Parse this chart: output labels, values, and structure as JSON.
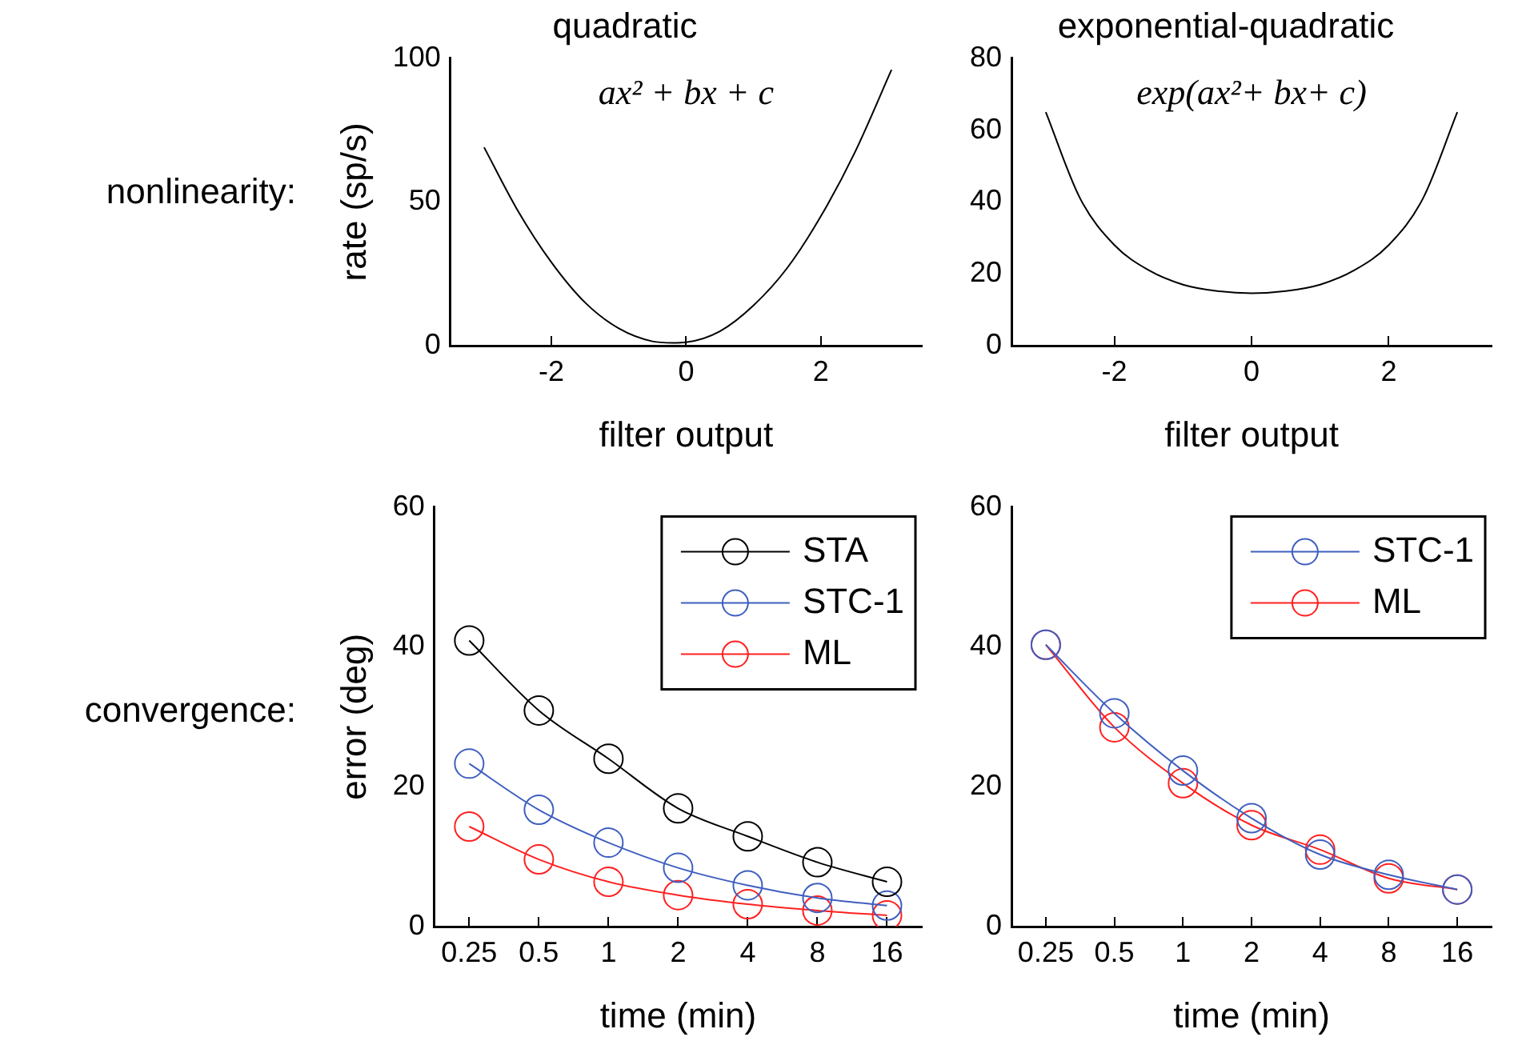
{
  "chart_data": [
    {
      "type": "line",
      "title": "quadratic",
      "subtitle": "ax² + bx + c",
      "xlabel": "filter output",
      "ylabel": "rate (sp/s)",
      "annotations": [
        "nonlinearity:"
      ],
      "xlim": [
        -3.5,
        3.5
      ],
      "xticks": [
        -2,
        0,
        2
      ],
      "ylim": [
        0,
        100
      ],
      "yticks": [
        0,
        50,
        100
      ],
      "series": [
        {
          "color": "#000000",
          "x": [
            -3.0,
            -2.5,
            -2,
            -1.5,
            -1,
            -0.5,
            -0.2,
            0,
            0.5,
            1,
            1.5,
            2,
            2.5,
            3.05
          ],
          "values": [
            69,
            47,
            29,
            15,
            6,
            1.5,
            1,
            1.2,
            5,
            14,
            27,
            45,
            67,
            96
          ]
        }
      ]
    },
    {
      "type": "line",
      "title": "exponential-quadratic",
      "subtitle": "exp(ax²+ bx+ c)",
      "xlabel": "filter output",
      "xlim": [
        -3.5,
        3.5
      ],
      "xticks": [
        -2,
        0,
        2
      ],
      "ylim": [
        0,
        80
      ],
      "yticks": [
        0,
        20,
        40,
        60,
        80
      ],
      "series": [
        {
          "color": "#000000",
          "x": [
            -3,
            -2.5,
            -2,
            -1.5,
            -1,
            -0.5,
            0,
            0.5,
            1,
            1.5,
            2,
            2.5,
            3
          ],
          "values": [
            65,
            41,
            28,
            21,
            17,
            15.2,
            14.6,
            15.2,
            17,
            21,
            28,
            41,
            65
          ]
        }
      ]
    },
    {
      "type": "line",
      "xlabel": "time (min)",
      "ylabel": "error (deg)",
      "annotations": [
        "convergence:"
      ],
      "categories": [
        "0.25",
        "0.5",
        "1",
        "2",
        "4",
        "8",
        "16"
      ],
      "ylim": [
        0,
        60
      ],
      "yticks": [
        0,
        20,
        40,
        60
      ],
      "marker": "circle",
      "legend": "top right",
      "series": [
        {
          "name": "STA",
          "color": "#000000",
          "values": [
            40.9,
            30.9,
            24,
            16.9,
            12.9,
            9.2,
            6.4
          ]
        },
        {
          "name": "STC-1",
          "color": "#3f5fbf",
          "values": [
            23.3,
            16.7,
            12,
            8.4,
            5.9,
            4.1,
            3.0
          ]
        },
        {
          "name": "ML",
          "color": "#ff2020",
          "values": [
            14.3,
            9.6,
            6.4,
            4.5,
            3.2,
            2.3,
            1.6
          ]
        }
      ]
    },
    {
      "type": "line",
      "xlabel": "time (min)",
      "categories": [
        "0.25",
        "0.5",
        "1",
        "2",
        "4",
        "8",
        "16"
      ],
      "ylim": [
        0,
        60
      ],
      "yticks": [
        0,
        20,
        40,
        60
      ],
      "marker": "circle",
      "legend": "top right",
      "series": [
        {
          "name": "STC-1",
          "color": "#3f5fbf",
          "values": [
            40.3,
            30.5,
            22.3,
            15.5,
            10.3,
            7.4,
            5.3
          ]
        },
        {
          "name": "ML",
          "color": "#ff2020",
          "values": [
            40.3,
            28.5,
            20.5,
            14.5,
            11,
            6.9,
            5.3
          ]
        }
      ]
    }
  ]
}
